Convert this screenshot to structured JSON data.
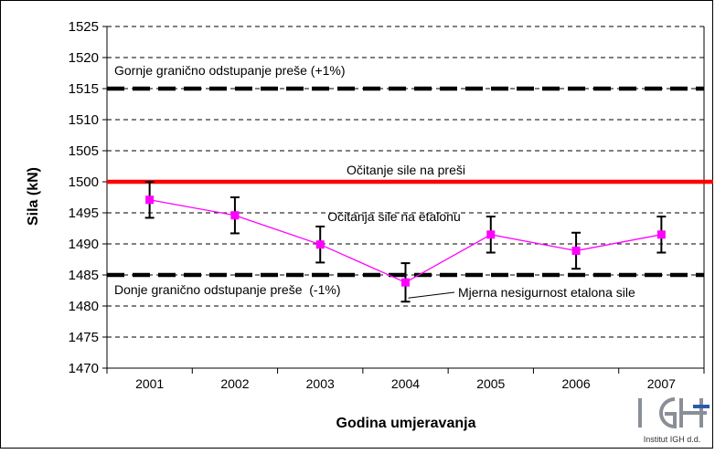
{
  "chart_data": {
    "type": "line",
    "xlabel": "Godina umjeravanja",
    "ylabel": "Sila (kN)",
    "ylim": [
      1470,
      1525
    ],
    "ytick_step": 5,
    "grid": "horizontal dashed",
    "categories": [
      "2001",
      "2002",
      "2003",
      "2004",
      "2005",
      "2006",
      "2007"
    ],
    "series": [
      {
        "name": "Očitanja sile na etalonu",
        "color": "#ff00ff",
        "marker": "square",
        "values": [
          1497.1,
          1494.6,
          1489.9,
          1483.8,
          1491.5,
          1488.9,
          1491.5
        ],
        "error": [
          2.9,
          2.9,
          2.9,
          3.1,
          2.9,
          2.9,
          2.9
        ]
      }
    ],
    "reference_lines": [
      {
        "label": "Gornje granično odstupanje preše (+1%)",
        "value": 1515,
        "style": "dashed",
        "color": "#000000"
      },
      {
        "label": "Očitanje sile na preši",
        "value": 1500,
        "style": "solid",
        "color": "#ff0000"
      },
      {
        "label": "Donje granično odstupanje preše  (-1%)",
        "value": 1485,
        "style": "dashed",
        "color": "#000000"
      }
    ],
    "annotations": {
      "uncertainty": "Mjerna nesigurnost etalona sile"
    }
  },
  "logo": {
    "text": "Institut IGH d.d."
  }
}
